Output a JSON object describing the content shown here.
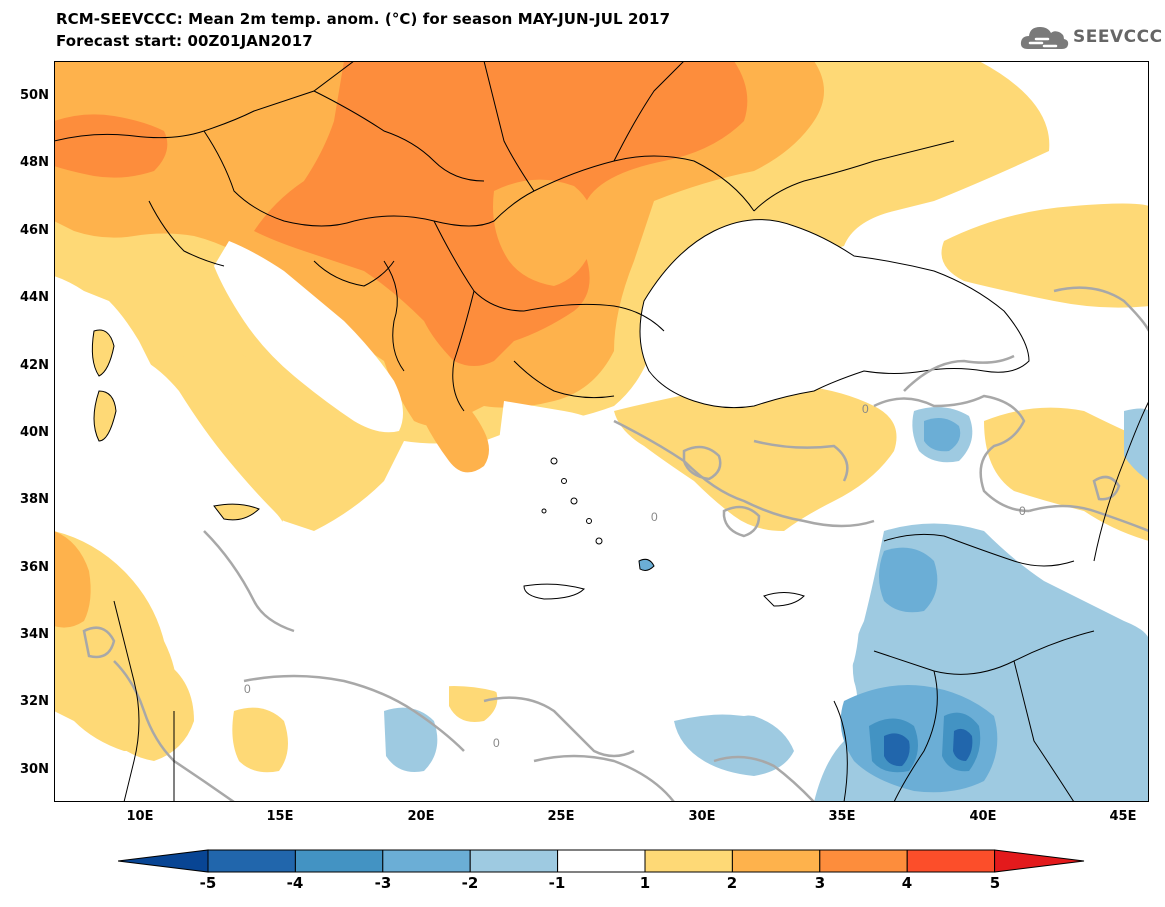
{
  "header": {
    "title_line1": "RCM-SEEVCCC: Mean 2m temp. anom. (°C) for season MAY-JUN-JUL 2017",
    "title_line2": "Forecast start: 00Z01JAN2017"
  },
  "logo": {
    "text": "SEEVCCC",
    "icon": "cloud-icon"
  },
  "map": {
    "latitude_labels": [
      "50N",
      "48N",
      "46N",
      "44N",
      "42N",
      "40N",
      "38N",
      "36N",
      "34N",
      "32N",
      "30N"
    ],
    "longitude_labels": [
      "10E",
      "15E",
      "20E",
      "25E",
      "30E",
      "35E",
      "40E",
      "45E"
    ],
    "contour_labels": [
      "0",
      "0",
      "0",
      "0",
      "0"
    ],
    "extent": {
      "lon": [
        7,
        46
      ],
      "lat": [
        29,
        51
      ]
    }
  },
  "colorbar": {
    "labels": [
      "-5",
      "-4",
      "-3",
      "-2",
      "-1",
      "1",
      "2",
      "3",
      "4",
      "5"
    ],
    "colors": [
      "#084594",
      "#2166ac",
      "#4393c3",
      "#6baed6",
      "#9ecae1",
      "#ffffff",
      "#fed976",
      "#feb24c",
      "#fd8d3c",
      "#fc4e2a",
      "#e31a1c"
    ]
  }
}
